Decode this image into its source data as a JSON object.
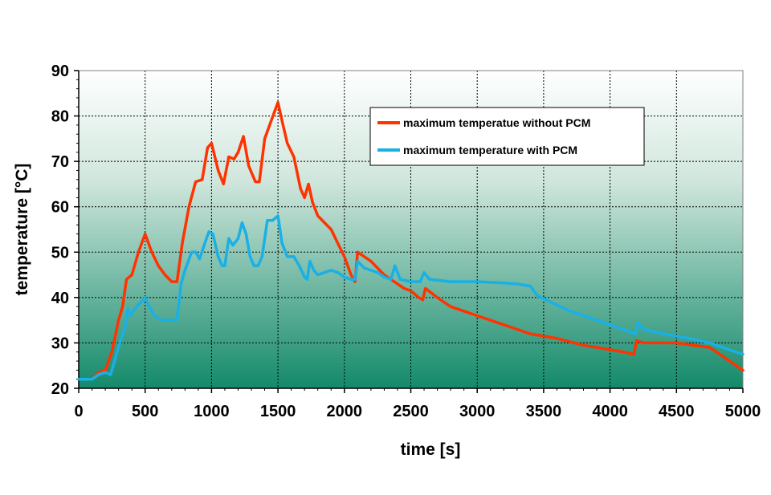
{
  "chart_data": {
    "type": "line",
    "xlabel": "time [s]",
    "ylabel": "temperature [°C]",
    "xlim": [
      0,
      5000
    ],
    "ylim": [
      20,
      90
    ],
    "x_ticks": [
      0,
      500,
      1000,
      1500,
      2000,
      2500,
      3000,
      3500,
      4000,
      4500,
      5000
    ],
    "y_ticks": [
      20,
      30,
      40,
      50,
      60,
      70,
      80,
      90
    ],
    "grid": true,
    "legend_position": "top-right",
    "background": {
      "top": "#ffffff",
      "bottom": "#138a6a"
    },
    "series": [
      {
        "name": "maximum temperatue without PCM",
        "color": "#ff3300",
        "points": [
          [
            0,
            22
          ],
          [
            100,
            22
          ],
          [
            150,
            23.5
          ],
          [
            200,
            24
          ],
          [
            250,
            28
          ],
          [
            300,
            35
          ],
          [
            330,
            38
          ],
          [
            360,
            44
          ],
          [
            400,
            45
          ],
          [
            450,
            50
          ],
          [
            500,
            54
          ],
          [
            550,
            50
          ],
          [
            600,
            47
          ],
          [
            650,
            45
          ],
          [
            700,
            43.5
          ],
          [
            740,
            43.5
          ],
          [
            780,
            52
          ],
          [
            830,
            60
          ],
          [
            880,
            65.5
          ],
          [
            930,
            66
          ],
          [
            970,
            73
          ],
          [
            1000,
            74
          ],
          [
            1050,
            68
          ],
          [
            1090,
            65
          ],
          [
            1130,
            71
          ],
          [
            1170,
            70.5
          ],
          [
            1200,
            72
          ],
          [
            1240,
            75.5
          ],
          [
            1280,
            69
          ],
          [
            1330,
            65.5
          ],
          [
            1360,
            65.5
          ],
          [
            1400,
            75
          ],
          [
            1450,
            79
          ],
          [
            1500,
            83
          ],
          [
            1530,
            79
          ],
          [
            1570,
            74
          ],
          [
            1620,
            71
          ],
          [
            1670,
            64
          ],
          [
            1700,
            62
          ],
          [
            1730,
            65
          ],
          [
            1760,
            61
          ],
          [
            1800,
            58
          ],
          [
            1850,
            56.5
          ],
          [
            1900,
            55
          ],
          [
            1950,
            52
          ],
          [
            2000,
            49
          ],
          [
            2050,
            45
          ],
          [
            2080,
            43.5
          ],
          [
            2100,
            50
          ],
          [
            2200,
            48
          ],
          [
            2300,
            45
          ],
          [
            2400,
            43
          ],
          [
            2450,
            42
          ],
          [
            2500,
            41.5
          ],
          [
            2560,
            40
          ],
          [
            2590,
            39.5
          ],
          [
            2610,
            42
          ],
          [
            2700,
            40
          ],
          [
            2800,
            38
          ],
          [
            2900,
            37
          ],
          [
            3000,
            36
          ],
          [
            3200,
            34
          ],
          [
            3400,
            32
          ],
          [
            3600,
            31
          ],
          [
            3800,
            29.5
          ],
          [
            4000,
            28.5
          ],
          [
            4100,
            28
          ],
          [
            4180,
            27.5
          ],
          [
            4200,
            30.5
          ],
          [
            4250,
            30
          ],
          [
            4500,
            30
          ],
          [
            4750,
            29
          ],
          [
            4800,
            28
          ],
          [
            4900,
            26
          ],
          [
            5000,
            24
          ]
        ]
      },
      {
        "name": "maximum temperature with PCM",
        "color": "#1ab0e6",
        "points": [
          [
            0,
            22
          ],
          [
            100,
            22
          ],
          [
            150,
            23
          ],
          [
            200,
            23.5
          ],
          [
            240,
            23
          ],
          [
            280,
            27
          ],
          [
            320,
            31
          ],
          [
            350,
            33.5
          ],
          [
            370,
            37.5
          ],
          [
            390,
            36
          ],
          [
            420,
            37.5
          ],
          [
            470,
            39
          ],
          [
            500,
            40
          ],
          [
            530,
            38
          ],
          [
            570,
            36
          ],
          [
            620,
            35
          ],
          [
            700,
            35
          ],
          [
            740,
            35
          ],
          [
            770,
            43
          ],
          [
            800,
            46
          ],
          [
            850,
            50
          ],
          [
            880,
            50
          ],
          [
            910,
            48.5
          ],
          [
            950,
            52
          ],
          [
            980,
            54.5
          ],
          [
            1010,
            54
          ],
          [
            1050,
            49
          ],
          [
            1080,
            47
          ],
          [
            1100,
            47
          ],
          [
            1130,
            53
          ],
          [
            1160,
            51.5
          ],
          [
            1200,
            53
          ],
          [
            1230,
            56.5
          ],
          [
            1260,
            54
          ],
          [
            1290,
            49
          ],
          [
            1320,
            47
          ],
          [
            1350,
            47
          ],
          [
            1380,
            49
          ],
          [
            1420,
            57
          ],
          [
            1460,
            57
          ],
          [
            1500,
            58
          ],
          [
            1530,
            52
          ],
          [
            1570,
            49
          ],
          [
            1620,
            49
          ],
          [
            1660,
            47
          ],
          [
            1700,
            44.5
          ],
          [
            1720,
            44
          ],
          [
            1740,
            48
          ],
          [
            1770,
            46
          ],
          [
            1800,
            45
          ],
          [
            1850,
            45.5
          ],
          [
            1900,
            46
          ],
          [
            1950,
            45.5
          ],
          [
            2000,
            44.5
          ],
          [
            2050,
            44
          ],
          [
            2080,
            44
          ],
          [
            2100,
            48
          ],
          [
            2150,
            46.5
          ],
          [
            2250,
            45.5
          ],
          [
            2300,
            44.5
          ],
          [
            2350,
            44
          ],
          [
            2380,
            47
          ],
          [
            2420,
            44
          ],
          [
            2500,
            43.5
          ],
          [
            2570,
            43.5
          ],
          [
            2600,
            45.5
          ],
          [
            2640,
            44
          ],
          [
            2800,
            43.5
          ],
          [
            3000,
            43.5
          ],
          [
            3200,
            43.2
          ],
          [
            3300,
            43
          ],
          [
            3400,
            42.5
          ],
          [
            3450,
            40.5
          ],
          [
            3550,
            39
          ],
          [
            3700,
            37
          ],
          [
            3900,
            35
          ],
          [
            4100,
            33
          ],
          [
            4190,
            32
          ],
          [
            4210,
            34.5
          ],
          [
            4250,
            33
          ],
          [
            4400,
            32
          ],
          [
            4600,
            31
          ],
          [
            4750,
            30
          ],
          [
            4850,
            29
          ],
          [
            5000,
            27.5
          ]
        ]
      }
    ]
  }
}
